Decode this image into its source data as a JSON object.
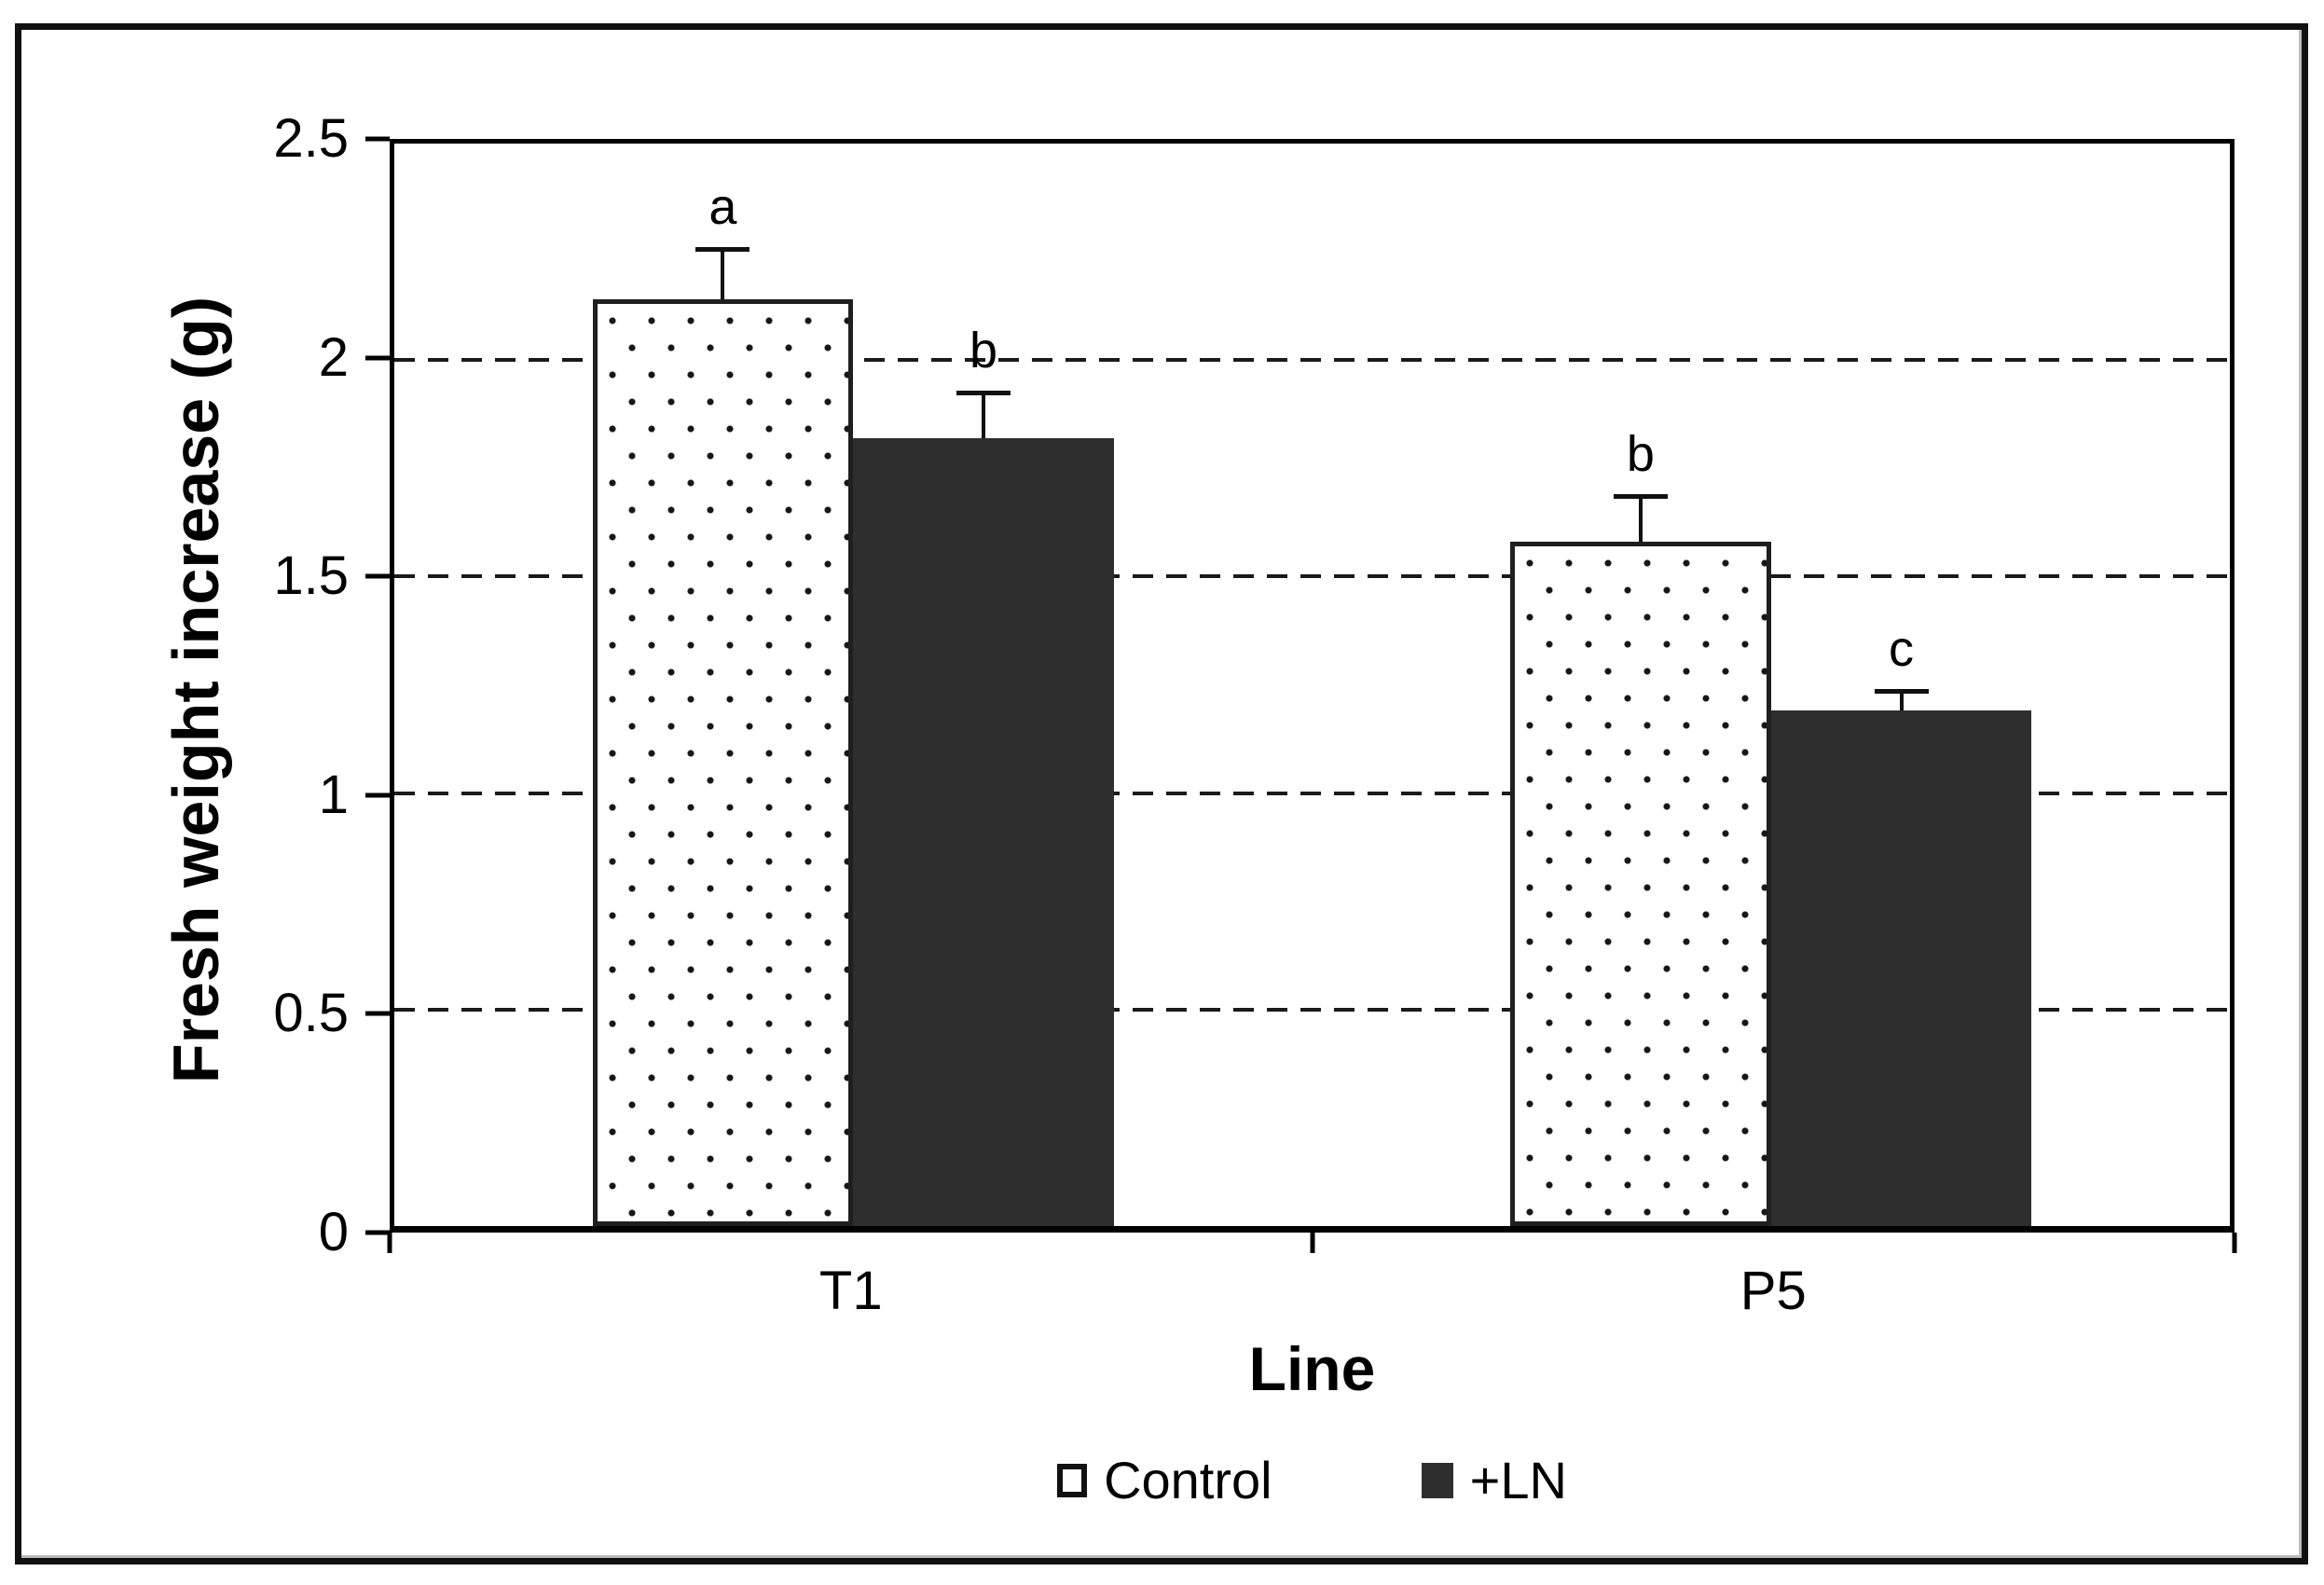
{
  "figure": {
    "ylabel": "Fresh weight increase (g)",
    "xlabel": "Line",
    "background": "#ffffff"
  },
  "legend": {
    "items": [
      {
        "label": "Control",
        "swatch": "dotted-white"
      },
      {
        "label": "+LN",
        "swatch": "solid-dark"
      }
    ]
  },
  "chart_data": {
    "type": "bar",
    "categories": [
      "T1",
      "P5"
    ],
    "series": [
      {
        "name": "Control",
        "values": [
          2.14,
          1.58
        ],
        "error_upper": [
          0.12,
          0.11
        ],
        "sig_letters": [
          "a",
          "b"
        ],
        "fill": "white-dotted"
      },
      {
        "name": "+LN",
        "values": [
          1.82,
          1.19
        ],
        "error_upper": [
          0.11,
          0.05
        ],
        "sig_letters": [
          "b",
          "c"
        ],
        "fill": "#2e2e2e"
      }
    ],
    "title": "",
    "xlabel": "Line",
    "ylabel": "Fresh weight increase (g)",
    "ylim": [
      0,
      2.5
    ],
    "yticks": [
      0,
      0.5,
      1,
      1.5,
      2,
      2.5
    ],
    "ytick_labels": [
      "0",
      "0.5",
      "1",
      "1.5",
      "2",
      "2.5"
    ],
    "gridlines": [
      0.5,
      1.0,
      1.5,
      2.0
    ],
    "grid_style": "dashed-horizontal",
    "legend_position": "bottom-center",
    "bar_width_frac": 0.142,
    "group_centers_frac": [
      0.25,
      0.75
    ]
  },
  "colors": {
    "ink": "#000000",
    "dark_bar": "#2e2e2e",
    "background": "#ffffff"
  }
}
